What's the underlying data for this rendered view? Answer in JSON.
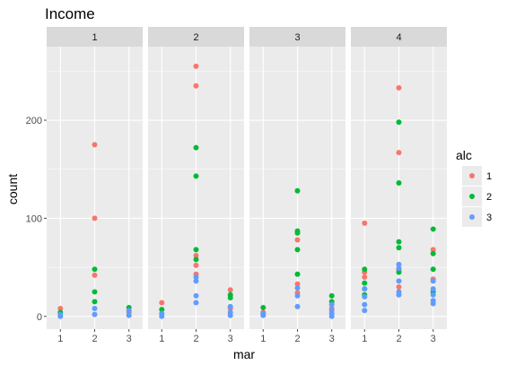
{
  "chart_data": {
    "type": "scatter",
    "title": "Income",
    "xlabel": "mar",
    "ylabel": "count",
    "x_ticks": [
      "1",
      "2",
      "3"
    ],
    "y_ticks": [
      0,
      100,
      200
    ],
    "xlim": [
      0.6,
      3.4
    ],
    "ylim": [
      -13,
      275
    ],
    "grid": true,
    "facet_variable_values": [
      "1",
      "2",
      "3",
      "4"
    ],
    "legend": {
      "title": "alc",
      "placement": "right",
      "entries": [
        "1",
        "2",
        "3"
      ],
      "colors": [
        "#f8766d",
        "#00ba38",
        "#619cff"
      ]
    },
    "facets": [
      {
        "label": "1",
        "series": [
          {
            "name": "1",
            "points": [
              [
                1,
                8
              ],
              [
                2,
                175
              ],
              [
                2,
                100
              ],
              [
                2,
                42
              ],
              [
                3,
                4
              ]
            ]
          },
          {
            "name": "2",
            "points": [
              [
                1,
                4
              ],
              [
                2,
                48
              ],
              [
                2,
                25
              ],
              [
                2,
                15
              ],
              [
                3,
                9
              ]
            ]
          },
          {
            "name": "3",
            "points": [
              [
                1,
                2
              ],
              [
                1,
                0
              ],
              [
                2,
                8
              ],
              [
                2,
                2
              ],
              [
                3,
                6
              ],
              [
                3,
                1
              ]
            ]
          }
        ]
      },
      {
        "label": "2",
        "series": [
          {
            "name": "1",
            "points": [
              [
                1,
                14
              ],
              [
                2,
                255
              ],
              [
                2,
                235
              ],
              [
                2,
                62
              ],
              [
                2,
                52
              ],
              [
                2,
                43
              ],
              [
                3,
                27
              ],
              [
                3,
                8
              ]
            ]
          },
          {
            "name": "2",
            "points": [
              [
                1,
                7
              ],
              [
                2,
                172
              ],
              [
                2,
                143
              ],
              [
                2,
                68
              ],
              [
                2,
                58
              ],
              [
                3,
                22
              ],
              [
                3,
                19
              ]
            ]
          },
          {
            "name": "3",
            "points": [
              [
                1,
                3
              ],
              [
                1,
                0
              ],
              [
                2,
                40
              ],
              [
                2,
                36
              ],
              [
                2,
                21
              ],
              [
                2,
                14
              ],
              [
                3,
                10
              ],
              [
                3,
                4
              ],
              [
                3,
                1
              ]
            ]
          }
        ]
      },
      {
        "label": "3",
        "series": [
          {
            "name": "1",
            "points": [
              [
                1,
                4
              ],
              [
                2,
                78
              ],
              [
                2,
                33
              ],
              [
                2,
                24
              ],
              [
                3,
                8
              ]
            ]
          },
          {
            "name": "2",
            "points": [
              [
                1,
                9
              ],
              [
                2,
                128
              ],
              [
                2,
                87
              ],
              [
                2,
                85
              ],
              [
                2,
                68
              ],
              [
                2,
                43
              ],
              [
                3,
                21
              ],
              [
                3,
                15
              ]
            ]
          },
          {
            "name": "3",
            "points": [
              [
                1,
                3
              ],
              [
                1,
                1
              ],
              [
                2,
                29
              ],
              [
                2,
                21
              ],
              [
                2,
                10
              ],
              [
                3,
                12
              ],
              [
                3,
                6
              ],
              [
                3,
                3
              ],
              [
                3,
                0
              ]
            ]
          }
        ]
      },
      {
        "label": "4",
        "series": [
          {
            "name": "1",
            "points": [
              [
                1,
                95
              ],
              [
                1,
                45
              ],
              [
                1,
                40
              ],
              [
                2,
                233
              ],
              [
                2,
                167
              ],
              [
                2,
                47
              ],
              [
                2,
                30
              ],
              [
                3,
                68
              ],
              [
                3,
                38
              ]
            ]
          },
          {
            "name": "2",
            "points": [
              [
                1,
                48
              ],
              [
                1,
                34
              ],
              [
                1,
                28
              ],
              [
                1,
                22
              ],
              [
                2,
                198
              ],
              [
                2,
                136
              ],
              [
                2,
                76
              ],
              [
                2,
                70
              ],
              [
                2,
                45
              ],
              [
                3,
                89
              ],
              [
                3,
                64
              ],
              [
                3,
                48
              ],
              [
                3,
                25
              ]
            ]
          },
          {
            "name": "3",
            "points": [
              [
                1,
                28
              ],
              [
                1,
                20
              ],
              [
                1,
                12
              ],
              [
                1,
                6
              ],
              [
                2,
                53
              ],
              [
                2,
                49
              ],
              [
                2,
                36
              ],
              [
                2,
                25
              ],
              [
                2,
                22
              ],
              [
                3,
                36
              ],
              [
                3,
                28
              ],
              [
                3,
                22
              ],
              [
                3,
                16
              ],
              [
                3,
                13
              ]
            ]
          }
        ]
      }
    ]
  }
}
